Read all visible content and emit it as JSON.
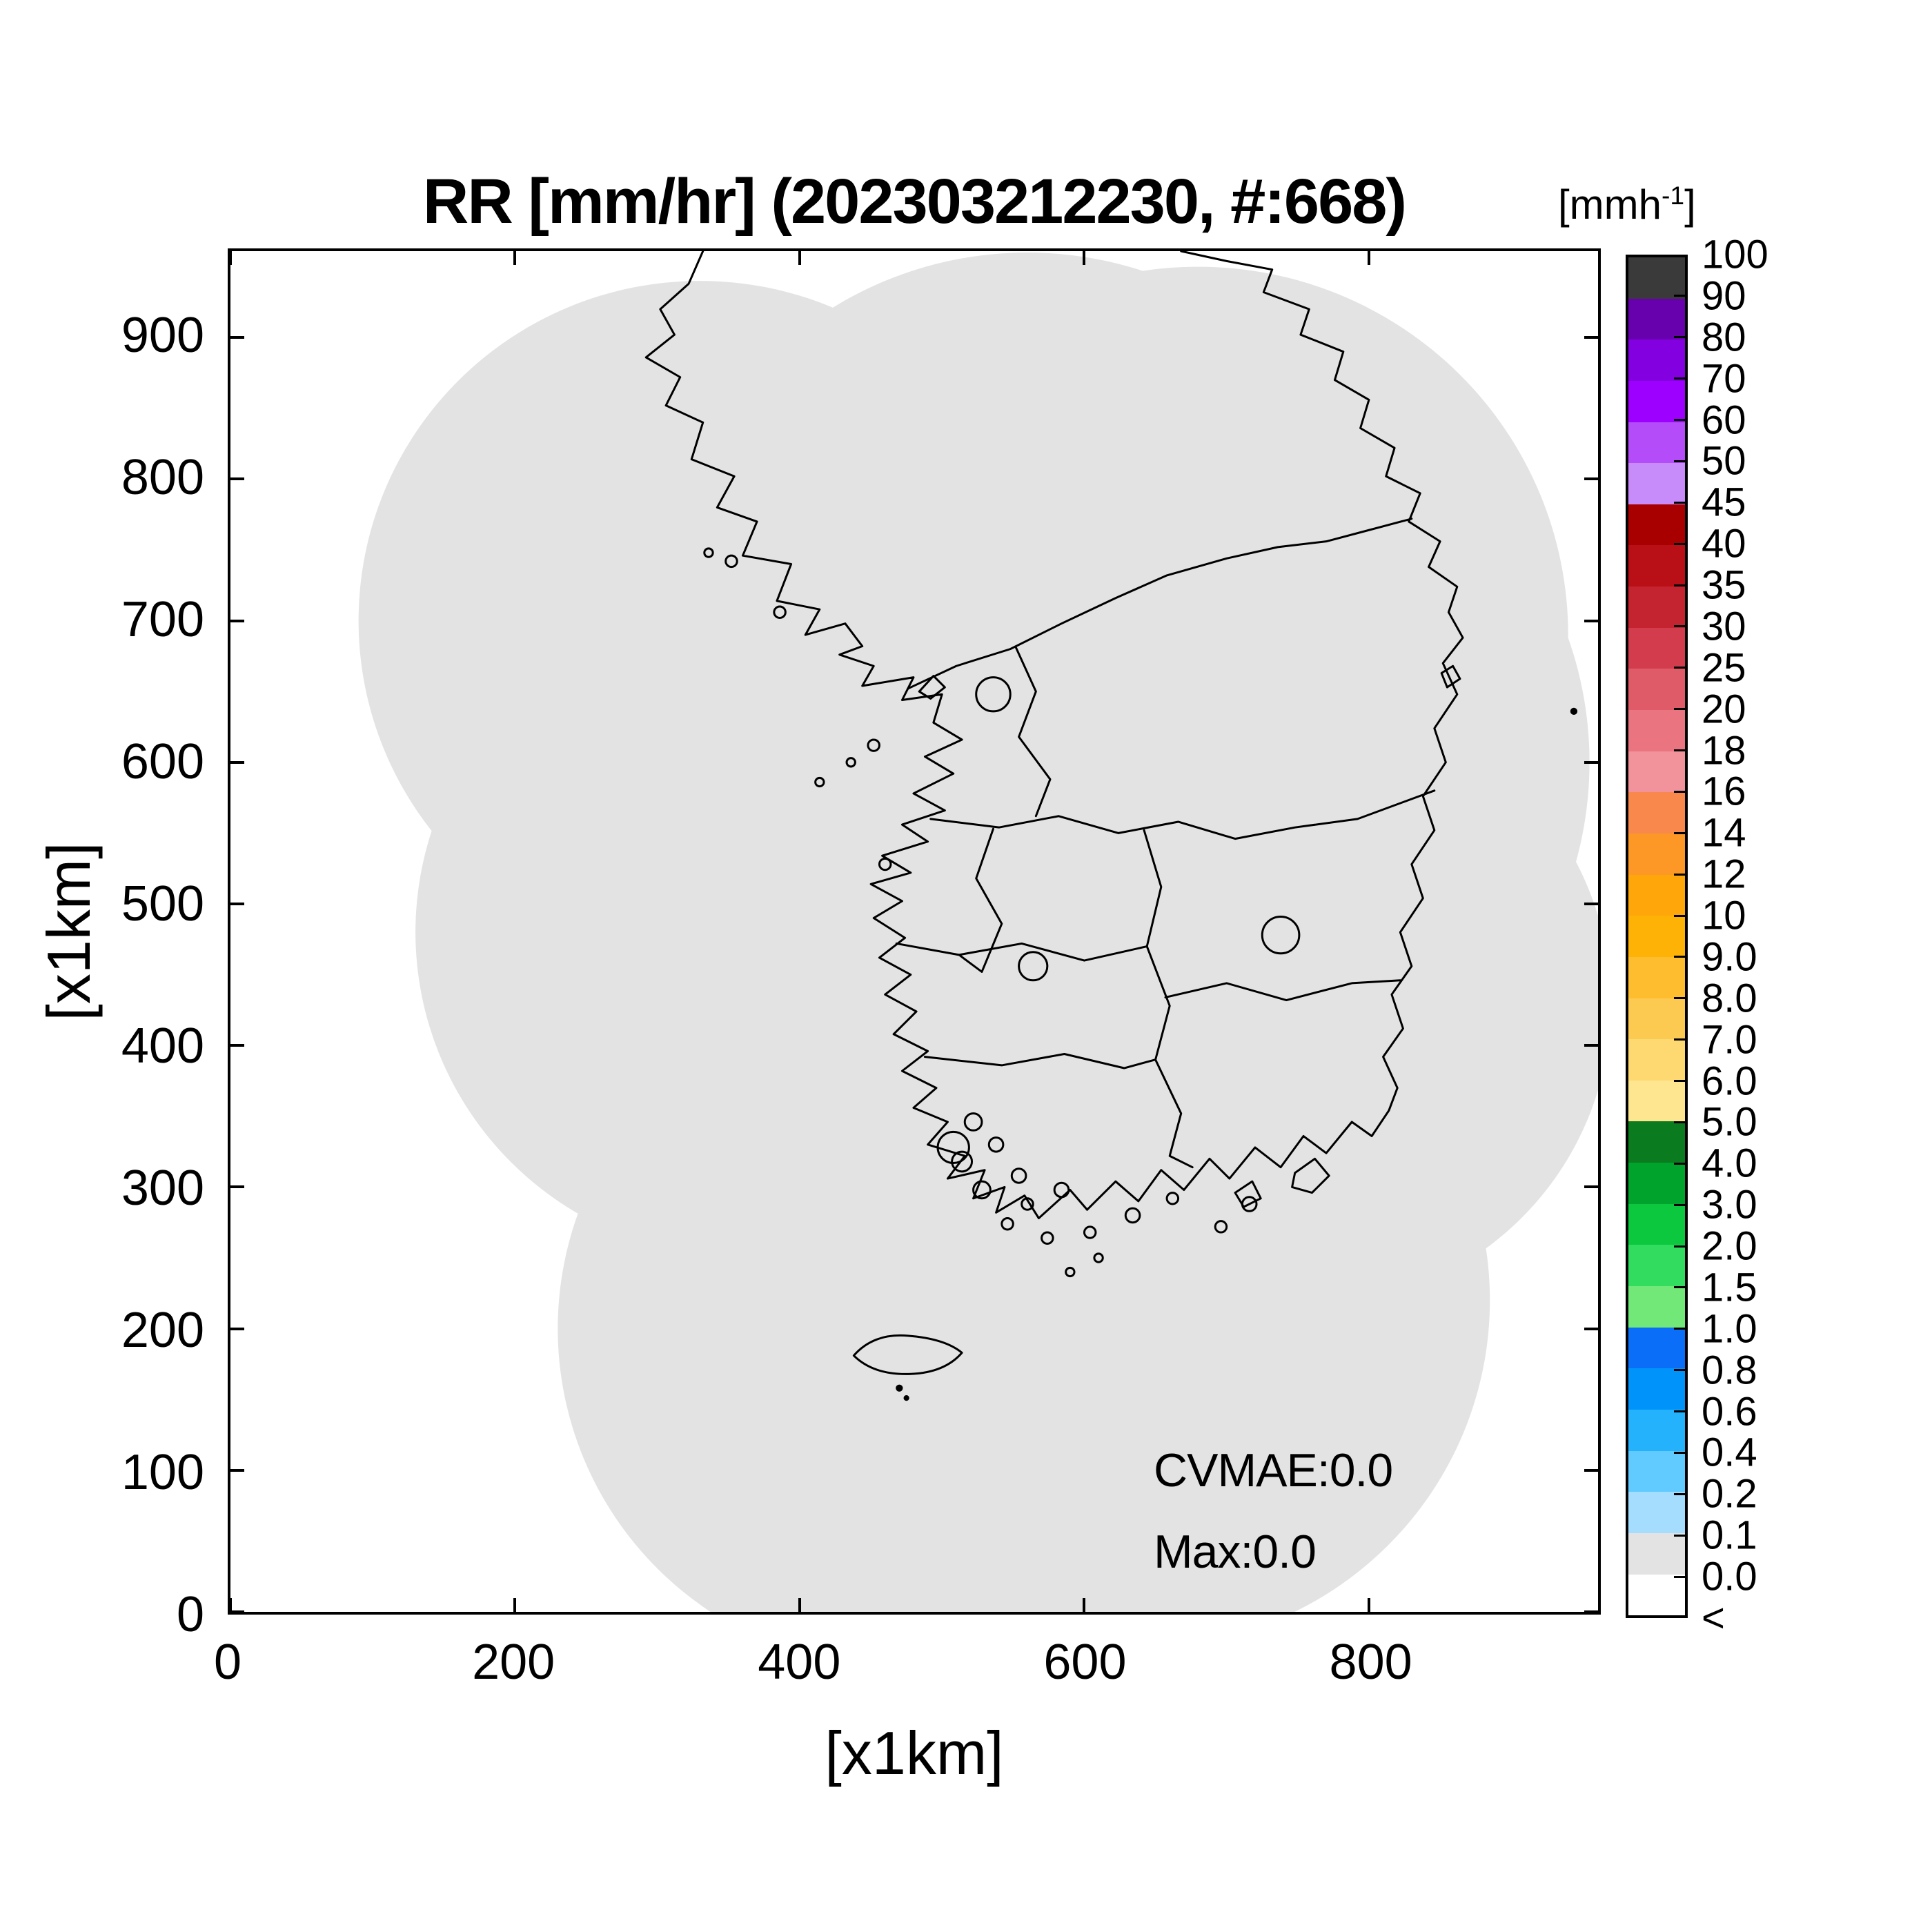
{
  "title": "RR [mm/hr] (202303212230, #:668)",
  "axes": {
    "x_label": "[x1km]",
    "y_label": "[x1km]",
    "x_ticks": [
      "0",
      "200",
      "400",
      "600",
      "800"
    ],
    "y_ticks": [
      "0",
      "100",
      "200",
      "300",
      "400",
      "500",
      "600",
      "700",
      "800",
      "900"
    ],
    "axis_max_km": 961
  },
  "annotations": {
    "cvmae": "CVMAE:0.0",
    "max": "Max:0.0"
  },
  "colorbar": {
    "unit_open": "[mmh",
    "unit_sup": "-1",
    "unit_close": "]",
    "bottom_label": "<",
    "levels": [
      {
        "label": "100",
        "color": "#3a3a3a"
      },
      {
        "label": "90",
        "color": "#6700ad"
      },
      {
        "label": "80",
        "color": "#8300e0"
      },
      {
        "label": "70",
        "color": "#9e00ff"
      },
      {
        "label": "60",
        "color": "#b44cf9"
      },
      {
        "label": "50",
        "color": "#c78bfa"
      },
      {
        "label": "45",
        "color": "#a80000"
      },
      {
        "label": "40",
        "color": "#b90f16"
      },
      {
        "label": "35",
        "color": "#c42430"
      },
      {
        "label": "30",
        "color": "#d23c4c"
      },
      {
        "label": "25",
        "color": "#e05b68"
      },
      {
        "label": "20",
        "color": "#ea7480"
      },
      {
        "label": "18",
        "color": "#f2929a"
      },
      {
        "label": "16",
        "color": "#f9884d"
      },
      {
        "label": "14",
        "color": "#fd9827"
      },
      {
        "label": "12",
        "color": "#ffa60a"
      },
      {
        "label": "10",
        "color": "#ffb206"
      },
      {
        "label": "9.0",
        "color": "#fdbd2e"
      },
      {
        "label": "8.0",
        "color": "#fdca51"
      },
      {
        "label": "7.0",
        "color": "#fed870"
      },
      {
        "label": "6.0",
        "color": "#fee690"
      },
      {
        "label": "5.0",
        "color": "#0a7c1f"
      },
      {
        "label": "4.0",
        "color": "#00a32b"
      },
      {
        "label": "3.0",
        "color": "#0bc83e"
      },
      {
        "label": "2.0",
        "color": "#31dc5e"
      },
      {
        "label": "1.5",
        "color": "#71e878"
      },
      {
        "label": "1.0",
        "color": "#0a6ef8"
      },
      {
        "label": "0.8",
        "color": "#0094fb"
      },
      {
        "label": "0.6",
        "color": "#25b2fd"
      },
      {
        "label": "0.4",
        "color": "#61cafe"
      },
      {
        "label": "0.2",
        "color": "#a5ddff"
      },
      {
        "label": "0.1",
        "color": "#e3e3e3"
      },
      {
        "label": "0.0",
        "color": "#ffffff"
      }
    ]
  },
  "map": {
    "coverage_color": "#e3e3e3",
    "outline_color": "#000000",
    "coverage_circles": [
      [
        330,
        700,
        240
      ],
      [
        560,
        700,
        260
      ],
      [
        680,
        690,
        260
      ],
      [
        690,
        600,
        265
      ],
      [
        755,
        430,
        215
      ],
      [
        360,
        480,
        230
      ],
      [
        470,
        200,
        240
      ],
      [
        640,
        220,
        245
      ]
    ],
    "borders": [
      "M332,961 L322,938 302,920 312,902 292,886 316,872 306,852 332,840 324,814 354,802 342,780 370,770 360,746 394,740 384,714 414,708 404,690 432,698 444,682 428,676 452,668 444,654 480,660 472,644 500,648 494,628 514,616 488,604 508,592 480,578 502,566 472,556 490,544 458,534 478,522 450,514 472,502 452,490 474,476 456,462 478,450 460,436 482,424 466,408 490,396 472,382 496,370 480,356 504,346 490,330 516,322 504,306 530,312 522,292 544,300 538,282 558,294 568,278 590,298 602,284 622,304 638,290 654,312 670,298 688,320 702,306 720,328 738,314 754,336 770,324 788,346 802,336 814,354 820,370 810,392 824,412 816,436 830,456 822,480 838,504 830,528 846,552 838,576 854,600 846,624 862,648 852,670 866,688 856,706 862,724 842,738 850,756 828,770 836,790 812,802 818,822 794,836 800,856 776,870 782,890 752,902 758,920 726,932 732,948 700,954 668,961",
      "M476,652 L510,668 548,680 584,698 622,716 658,732 700,744 736,752 770,756 800,764 830,772",
      "M552,681 L566,650 554,618 576,588 566,562",
      "M492,560 L540,554 582,562 624,550 666,558 706,546 748,554 792,560 846,580",
      "M642,552 L654,512 644,470 660,428 650,390 668,352 660,322 676,314",
      "M468,472 L512,464 556,472 600,460 644,470",
      "M488,392 L542,386 586,394 628,384 650,390",
      "M657,434 L700,444 742,432 788,444 822,446",
      "M536,553 L524,518 542,486 528,452 512,464"
    ],
    "rings": [
      [
        536,
        648,
        12
      ],
      [
        508,
        328,
        11
      ],
      [
        738,
        478,
        13
      ],
      [
        564,
        456,
        10
      ]
    ],
    "islands": [
      [
        522,
        346,
        6
      ],
      [
        538,
        330,
        5
      ],
      [
        514,
        318,
        7
      ],
      [
        554,
        308,
        5
      ],
      [
        528,
        298,
        6
      ],
      [
        560,
        288,
        4
      ],
      [
        584,
        298,
        5
      ],
      [
        546,
        274,
        4
      ],
      [
        574,
        264,
        4
      ],
      [
        604,
        268,
        4
      ],
      [
        610,
        250,
        3
      ],
      [
        590,
        240,
        3
      ],
      [
        634,
        280,
        5
      ],
      [
        662,
        292,
        4
      ],
      [
        696,
        272,
        4
      ],
      [
        716,
        288,
        5
      ],
      [
        452,
        612,
        4
      ],
      [
        436,
        600,
        3
      ],
      [
        414,
        586,
        3
      ],
      [
        386,
        706,
        4
      ],
      [
        352,
        742,
        4
      ],
      [
        336,
        748,
        3
      ],
      [
        460,
        528,
        4
      ]
    ],
    "island_paths": [
      "M438,181 Q452,197 476,195 Q502,193 514,183 Q502,169 478,168 Q452,167 438,181 Z",
      "M748,310 L762,320 772,308 760,296 746,300 Z",
      "M706,296 L718,304 724,292 712,286 Z",
      "M484,650 L494,661 502,653 492,645 Z",
      "M851,663 L859,668 864,659 855,653 Z"
    ],
    "dots": [
      [
        470,
        158,
        2.5
      ],
      [
        475,
        151,
        2
      ],
      [
        944,
        636,
        2.5
      ]
    ]
  },
  "chart_data": {
    "type": "heatmap",
    "title": "RR [mm/hr] (202303212230, #:668)",
    "timestamp": "202303212230",
    "sample_count": "668",
    "xlabel": "[x1km]",
    "ylabel": "[x1km]",
    "xlim": [
      0,
      961
    ],
    "ylim": [
      0,
      961
    ],
    "x_ticks": [
      0,
      200,
      400,
      600,
      800
    ],
    "y_ticks": [
      0,
      100,
      200,
      300,
      400,
      500,
      600,
      700,
      800,
      900
    ],
    "grid": false,
    "colorbar_unit": "[mmh-1]",
    "colorbar_levels": [
      "100",
      "90",
      "80",
      "70",
      "60",
      "50",
      "45",
      "40",
      "35",
      "30",
      "25",
      "20",
      "18",
      "16",
      "14",
      "12",
      "10",
      "9.0",
      "8.0",
      "7.0",
      "6.0",
      "5.0",
      "4.0",
      "3.0",
      "2.0",
      "1.5",
      "1.0",
      "0.8",
      "0.6",
      "0.4",
      "0.2",
      "0.1",
      "0.0",
      "<"
    ],
    "colorbar_colors": [
      "#3a3a3a",
      "#6700ad",
      "#8300e0",
      "#9e00ff",
      "#b44cf9",
      "#c78bfa",
      "#a80000",
      "#b90f16",
      "#c42430",
      "#d23c4c",
      "#e05b68",
      "#ea7480",
      "#f2929a",
      "#f9884d",
      "#fd9827",
      "#ffa60a",
      "#ffb206",
      "#fdbd2e",
      "#fdca51",
      "#fed870",
      "#fee690",
      "#0a7c1f",
      "#00a32b",
      "#0bc83e",
      "#31dc5e",
      "#71e878",
      "#0a6ef8",
      "#0094fb",
      "#25b2fd",
      "#61cafe",
      "#a5ddff",
      "#e3e3e3",
      "#ffffff"
    ],
    "cvmae": 0.0,
    "max": 0.0,
    "field_summary": "Radar rain-rate field equals 0.0 mm/hr everywhere inside the composite radar coverage area (shown gray); no precipitation echoes."
  }
}
